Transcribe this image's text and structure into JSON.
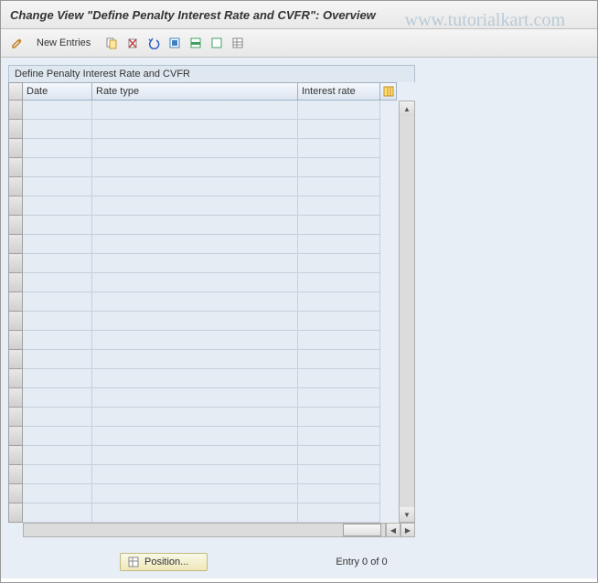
{
  "header": {
    "title": "Change View \"Define Penalty Interest Rate and CVFR\": Overview"
  },
  "watermark": "www.tutorialkart.com",
  "toolbar": {
    "new_entries": "New Entries"
  },
  "table": {
    "title": "Define Penalty Interest Rate and CVFR",
    "columns": {
      "date": "Date",
      "rate_type": "Rate type",
      "interest": "Interest rate"
    },
    "row_count": 22
  },
  "footer": {
    "position_label": "Position...",
    "entry_status": "Entry 0 of 0"
  },
  "colors": {
    "bg": "#e8eef5",
    "cell": "#e5ecf3",
    "header_grad_top": "#f5f8fc",
    "header_grad_bot": "#dce6f0",
    "border": "#a0b0c0"
  }
}
